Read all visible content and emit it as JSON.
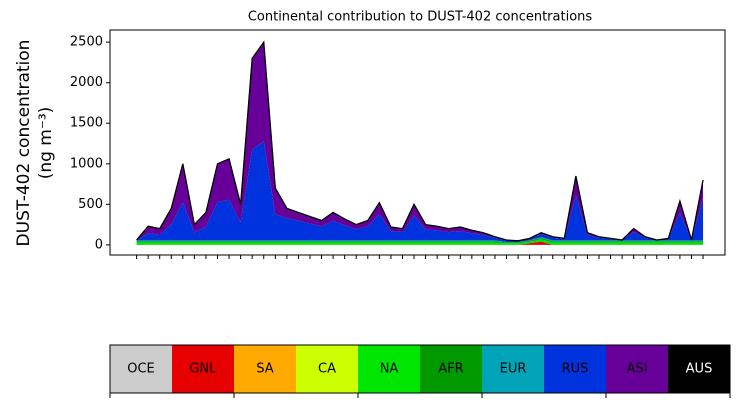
{
  "chart_data": {
    "type": "stacked_area",
    "title": "Continental contribution to DUST-402 concentrations",
    "ylabel": [
      "DUST-402 concentration",
      "(ng m⁻³)"
    ],
    "x": [
      0,
      1,
      2,
      3,
      4,
      5,
      6,
      7,
      8,
      9,
      10,
      11,
      12,
      13,
      14,
      15,
      16,
      17,
      18,
      19,
      20,
      21,
      22,
      23,
      24,
      25,
      26,
      27,
      28,
      29,
      30,
      31,
      32,
      33,
      34,
      35,
      36,
      37,
      38,
      39,
      40,
      41,
      42,
      43,
      44,
      45,
      46,
      47,
      48,
      49
    ],
    "xlim": [
      -2.3,
      50.9
    ],
    "ylim": [
      -125,
      2650
    ],
    "yticks": [
      0,
      500,
      1000,
      1500,
      2000,
      2500
    ],
    "series": [
      {
        "name": "OCE",
        "color": "#cccccc",
        "values": [
          0,
          0,
          0,
          0,
          0,
          0,
          0,
          0,
          0,
          0,
          0,
          0,
          0,
          0,
          0,
          0,
          0,
          0,
          0,
          0,
          0,
          0,
          0,
          0,
          0,
          0,
          0,
          0,
          0,
          0,
          0,
          0,
          0,
          0,
          0,
          0,
          0,
          0,
          0,
          0,
          0,
          0,
          0,
          0,
          0,
          0,
          0,
          0,
          0,
          0
        ]
      },
      {
        "name": "GNL",
        "color": "#e60000",
        "values": [
          0,
          0,
          0,
          0,
          0,
          0,
          0,
          0,
          0,
          0,
          0,
          0,
          0,
          0,
          0,
          0,
          0,
          0,
          0,
          0,
          0,
          0,
          0,
          0,
          0,
          0,
          0,
          0,
          0,
          0,
          0,
          0,
          0,
          0,
          20,
          40,
          0,
          0,
          0,
          0,
          0,
          0,
          0,
          0,
          0,
          0,
          0,
          0,
          0,
          0
        ]
      },
      {
        "name": "SA",
        "color": "#ffaa00",
        "values": [
          0,
          0,
          0,
          0,
          0,
          0,
          0,
          0,
          0,
          0,
          0,
          0,
          0,
          0,
          0,
          0,
          0,
          0,
          0,
          0,
          0,
          0,
          0,
          0,
          0,
          0,
          0,
          0,
          0,
          0,
          0,
          0,
          0,
          0,
          0,
          0,
          0,
          0,
          0,
          0,
          0,
          0,
          0,
          0,
          0,
          0,
          0,
          0,
          0,
          0
        ]
      },
      {
        "name": "CA",
        "color": "#ccff00",
        "values": [
          0,
          0,
          0,
          0,
          0,
          0,
          0,
          0,
          0,
          0,
          0,
          0,
          0,
          0,
          0,
          0,
          0,
          0,
          0,
          0,
          0,
          0,
          0,
          0,
          0,
          0,
          0,
          0,
          0,
          0,
          0,
          0,
          0,
          0,
          0,
          0,
          0,
          0,
          0,
          0,
          0,
          0,
          0,
          0,
          0,
          0,
          0,
          0,
          0,
          0
        ]
      },
      {
        "name": "NA",
        "color": "#00e600",
        "values": [
          30,
          30,
          30,
          30,
          30,
          30,
          30,
          30,
          30,
          30,
          30,
          30,
          30,
          30,
          30,
          30,
          30,
          30,
          30,
          30,
          30,
          30,
          30,
          30,
          30,
          30,
          30,
          30,
          30,
          30,
          30,
          30,
          20,
          20,
          20,
          30,
          30,
          30,
          30,
          30,
          30,
          30,
          30,
          30,
          30,
          30,
          30,
          30,
          30,
          30
        ]
      },
      {
        "name": "AFR",
        "color": "#009900",
        "values": [
          15,
          15,
          15,
          15,
          15,
          15,
          15,
          15,
          15,
          15,
          15,
          15,
          15,
          15,
          15,
          15,
          15,
          15,
          15,
          15,
          15,
          15,
          15,
          15,
          15,
          15,
          15,
          15,
          15,
          15,
          15,
          15,
          10,
          10,
          10,
          15,
          15,
          15,
          15,
          15,
          15,
          15,
          15,
          15,
          15,
          15,
          15,
          15,
          15,
          15
        ]
      },
      {
        "name": "EUR",
        "color": "#00a3b8",
        "values": [
          10,
          10,
          10,
          10,
          10,
          10,
          10,
          10,
          10,
          10,
          10,
          10,
          10,
          10,
          10,
          10,
          10,
          10,
          10,
          10,
          10,
          10,
          10,
          10,
          10,
          10,
          10,
          10,
          10,
          10,
          10,
          10,
          5,
          5,
          5,
          10,
          10,
          10,
          10,
          10,
          10,
          10,
          10,
          10,
          10,
          10,
          10,
          10,
          10,
          10
        ]
      },
      {
        "name": "RUS",
        "color": "#0033dd",
        "values": [
          3,
          88,
          72,
          198,
          472,
          98,
          172,
          472,
          502,
          222,
          1122,
          1222,
          322,
          277,
          242,
          207,
          172,
          242,
          186,
          137,
          172,
          326,
          116,
          102,
          312,
          137,
          123,
          102,
          116,
          88,
          67,
          32,
          18,
          11,
          18,
          39,
          32,
          18,
          557,
          67,
          32,
          18,
          4,
          102,
          32,
          4,
          18,
          340,
          4,
          522
        ]
      },
      {
        "name": "ASI",
        "color": "#660099",
        "values": [
          2,
          87,
          73,
          197,
          473,
          97,
          173,
          473,
          503,
          223,
          1123,
          1223,
          323,
          118,
          103,
          88,
          73,
          103,
          79,
          58,
          73,
          139,
          49,
          43,
          133,
          58,
          52,
          43,
          49,
          37,
          28,
          13,
          7,
          4,
          7,
          16,
          13,
          7,
          238,
          28,
          13,
          7,
          1,
          43,
          13,
          1,
          7,
          145,
          1,
          223
        ]
      },
      {
        "name": "AUS",
        "color": "#000000",
        "values": [
          0,
          0,
          0,
          0,
          0,
          0,
          0,
          0,
          0,
          0,
          0,
          0,
          0,
          0,
          0,
          0,
          0,
          0,
          0,
          0,
          0,
          0,
          0,
          0,
          0,
          0,
          0,
          0,
          0,
          0,
          0,
          0,
          0,
          0,
          0,
          0,
          0,
          0,
          0,
          0,
          0,
          0,
          0,
          0,
          0,
          0,
          0,
          0,
          0,
          0
        ]
      }
    ]
  }
}
